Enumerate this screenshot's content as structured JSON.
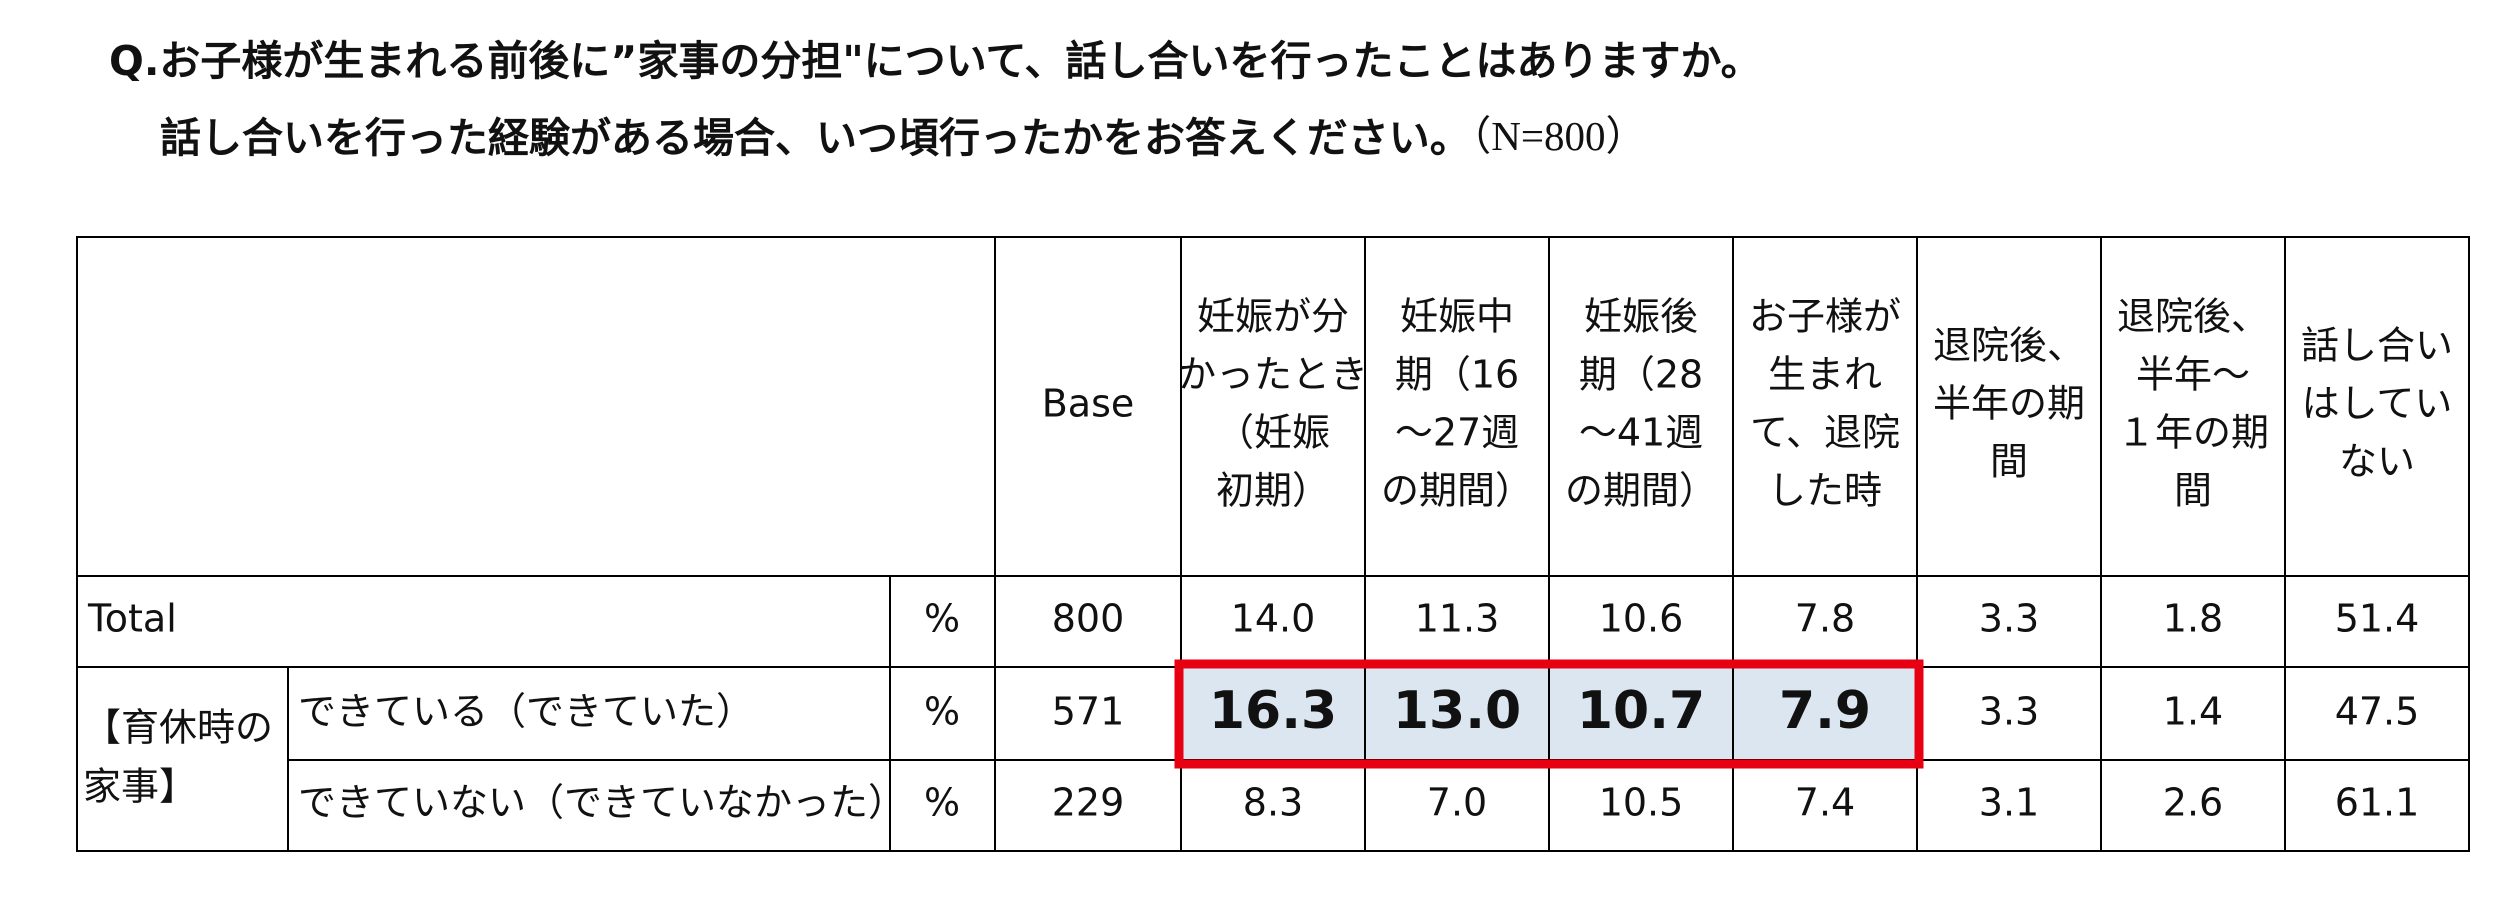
{
  "title": {
    "lines": [
      "Q.お子様が生まれる前後に”家事の分担\"について、話し合いを行ったことはありますか。",
      "話し合いを行った経験がある場合、いつ頃行ったかをお答えください。"
    ],
    "note": "（N=800）"
  },
  "table": {
    "columns": [
      [
        "Base"
      ],
      [
        "妊娠が分",
        "かったとき",
        "（妊娠",
        "初期）"
      ],
      [
        "妊娠中",
        "期（16",
        "～27週",
        "の期間）"
      ],
      [
        "妊娠後",
        "期（28",
        "～41週",
        "の期間）"
      ],
      [
        "お子様が",
        "生まれ",
        "て、退院",
        "した時"
      ],
      [
        "退院後、",
        "半年の期",
        "間"
      ],
      [
        "退院後、",
        "半年～",
        "１年の期",
        "間"
      ],
      [
        "話し合い",
        "はしてい",
        "ない"
      ]
    ],
    "group_label": [
      "【育休時の",
      "家事】"
    ],
    "rows": [
      {
        "label": "Total",
        "unit": "%",
        "values": [
          "800",
          "14.0",
          "11.3",
          "10.6",
          "7.8",
          "3.3",
          "1.8",
          "51.4"
        ]
      },
      {
        "label": "できている（できていた）",
        "unit": "%",
        "values": [
          "571",
          "16.3",
          "13.0",
          "10.7",
          "7.9",
          "3.3",
          "1.4",
          "47.5"
        ]
      },
      {
        "label": "できていない（できていなかった）",
        "unit": "%",
        "values": [
          "229",
          "8.3",
          "7.0",
          "10.5",
          "7.4",
          "3.1",
          "2.6",
          "61.1"
        ]
      }
    ]
  }
}
